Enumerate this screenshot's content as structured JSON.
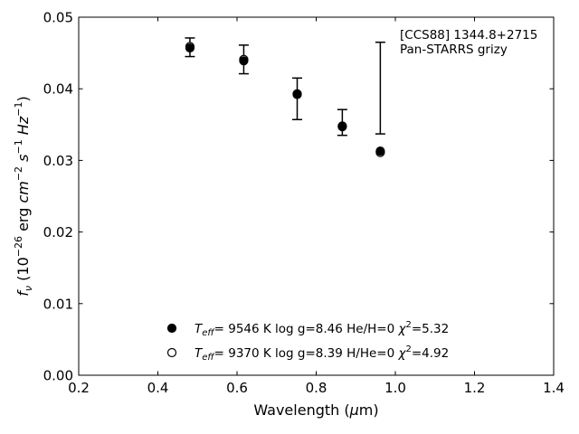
{
  "chart_data": {
    "type": "scatter",
    "annotation": [
      "[CCS88] 1344.8+2715",
      "Pan-STARRS grizy"
    ],
    "xlabel": {
      "pre": "Wavelength (",
      "mu": "μ",
      "post": "m)"
    },
    "ylabel": {
      "f": "f",
      "nu": "ν",
      "pre": " (10",
      "exp1": "−26",
      "mid": " erg ",
      "cm": "cm",
      "exp2": "−2",
      "s": "s",
      "exp3": "−1",
      "hz": "Hz",
      "exp4": "−1",
      "post": ")"
    },
    "xlim": [
      0.2,
      1.4
    ],
    "ylim": [
      0.0,
      0.05
    ],
    "xticks": [
      0.2,
      0.4,
      0.6,
      0.8,
      1.0,
      1.2,
      1.4
    ],
    "xtick_labels": [
      "0.2",
      "0.4",
      "0.6",
      "0.8",
      "1.0",
      "1.2",
      "1.4"
    ],
    "yticks": [
      0.0,
      0.01,
      0.02,
      0.03,
      0.04,
      0.05
    ],
    "ytick_labels": [
      "0.00",
      "0.01",
      "0.02",
      "0.03",
      "0.04",
      "0.05"
    ],
    "observed": {
      "x": [
        0.481,
        0.617,
        0.752,
        0.866,
        0.962
      ],
      "y": [
        0.0458,
        0.0441,
        0.0386,
        0.0353,
        0.0401
      ],
      "yerr": [
        0.0013,
        0.002,
        0.0029,
        0.0018,
        0.0064
      ]
    },
    "series": [
      {
        "marker": "filled",
        "x": [
          0.481,
          0.617,
          0.752,
          0.866,
          0.962
        ],
        "y": [
          0.0457,
          0.0439,
          0.0393,
          0.0348,
          0.0313
        ]
      },
      {
        "marker": "open",
        "x": [
          0.481,
          0.617,
          0.752,
          0.866,
          0.962
        ],
        "y": [
          0.0459,
          0.0441,
          0.0392,
          0.0347,
          0.0311
        ]
      }
    ],
    "legend": [
      {
        "marker": "filled",
        "t": "T",
        "eff": "eff",
        "rest": "=  9546 K  log g=8.46  He/H=0  ",
        "chi": "χ",
        "sq": "2",
        "val": "=5.32"
      },
      {
        "marker": "open",
        "t": "T",
        "eff": "eff",
        "rest": "=  9370 K  log g=8.39  H/He=0  ",
        "chi": "χ",
        "sq": "2",
        "val": "=4.92"
      }
    ],
    "legend_position": "lower-center",
    "grid": false
  }
}
